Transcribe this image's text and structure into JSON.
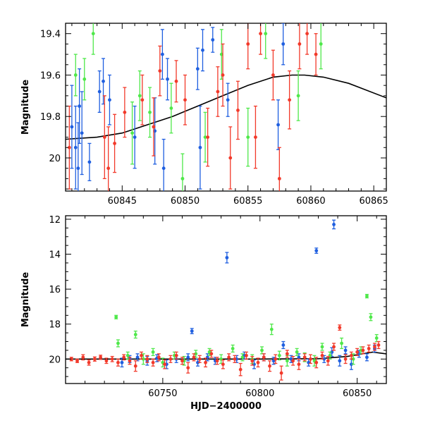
{
  "colors": {
    "blue": "#1f5fe0",
    "green": "#4fe84a",
    "red": "#f2392a",
    "model": "#000000"
  },
  "chart_data": [
    {
      "type": "scatter",
      "panel": "top",
      "xlabel": "",
      "ylabel": "Magnitude",
      "xlim": [
        60840.5,
        60866
      ],
      "ylim": [
        20.16,
        19.35
      ],
      "y_inverted": true,
      "xticks": [
        60845,
        60850,
        60855,
        60860,
        60865
      ],
      "yticks": [
        19.4,
        19.6,
        19.8,
        20
      ],
      "model_curve": {
        "x": [
          60840.5,
          60843,
          60845,
          60847,
          60849,
          60851,
          60853,
          60855,
          60857,
          60858.5,
          60859.5,
          60861,
          60863,
          60866
        ],
        "y": [
          19.91,
          19.9,
          19.88,
          19.84,
          19.8,
          19.75,
          19.7,
          19.65,
          19.61,
          19.6,
          19.6,
          19.61,
          19.64,
          19.71
        ]
      },
      "series": [
        {
          "color_key": "blue",
          "x": [
            60841.0,
            60841.3,
            60841.5,
            60841.6,
            60841.8,
            60842.4,
            60843.2,
            60843.5,
            60844.0,
            60846.0,
            60847.6,
            60848.2,
            60848.3,
            60848.6,
            60851.0,
            60851.2,
            60851.4,
            60852.2,
            60853.4,
            60857.4,
            60857.8
          ],
          "y": [
            19.85,
            19.95,
            20.05,
            19.75,
            19.88,
            20.02,
            19.68,
            19.63,
            19.72,
            19.9,
            19.87,
            19.5,
            20.05,
            19.62,
            19.57,
            19.95,
            19.48,
            19.43,
            19.72,
            19.84,
            19.45
          ],
          "err": [
            0.2,
            0.2,
            0.22,
            0.18,
            0.2,
            0.09,
            0.1,
            0.11,
            0.12,
            0.15,
            0.16,
            0.12,
            0.14,
            0.1,
            0.1,
            0.2,
            0.1,
            0.06,
            0.08,
            0.12,
            0.1
          ]
        },
        {
          "color_key": "green",
          "x": [
            60841.3,
            60842.0,
            60842.7,
            60845.8,
            60846.4,
            60847.2,
            60848.9,
            60849.8,
            60851.6,
            60852.9,
            60855.0,
            60856.4,
            60859.0,
            60860.8
          ],
          "y": [
            19.6,
            19.62,
            19.4,
            19.88,
            19.7,
            19.78,
            19.76,
            20.1,
            19.9,
            19.5,
            19.9,
            19.4,
            19.7,
            19.45
          ],
          "err": [
            0.1,
            0.1,
            0.1,
            0.15,
            0.12,
            0.12,
            0.12,
            0.12,
            0.12,
            0.12,
            0.14,
            0.12,
            0.12,
            0.12
          ]
        },
        {
          "color_key": "red",
          "x": [
            60840.8,
            60843.6,
            60843.9,
            60844.4,
            60845.2,
            60846.6,
            60847.5,
            60848.0,
            60849.3,
            60850.0,
            60851.8,
            60852.6,
            60853.0,
            60853.6,
            60854.2,
            60855.0,
            60855.6,
            60856.0,
            60857.0,
            60857.5,
            60858.3,
            60859.1,
            60859.7,
            60860.4
          ],
          "y": [
            19.95,
            19.9,
            20.05,
            19.93,
            19.78,
            19.72,
            19.85,
            19.58,
            19.63,
            19.72,
            19.9,
            19.68,
            19.6,
            20.0,
            19.77,
            19.45,
            19.9,
            19.4,
            19.6,
            20.1,
            19.72,
            19.45,
            19.4,
            19.5
          ],
          "err": [
            0.2,
            0.2,
            0.2,
            0.14,
            0.12,
            0.12,
            0.14,
            0.12,
            0.1,
            0.12,
            0.14,
            0.12,
            0.15,
            0.15,
            0.14,
            0.12,
            0.15,
            0.1,
            0.12,
            0.15,
            0.14,
            0.12,
            0.1,
            0.1
          ]
        }
      ]
    },
    {
      "type": "scatter",
      "panel": "bottom",
      "xlabel": "HJD−2400000",
      "ylabel": "Magnitude",
      "xlim": [
        60700,
        60865
      ],
      "ylim": [
        21.4,
        11.8
      ],
      "y_inverted": true,
      "xticks": [
        60750,
        60800,
        60850
      ],
      "yticks": [
        12,
        14,
        16,
        18,
        20
      ],
      "model_curve": {
        "x": [
          60700,
          60760,
          60800,
          60830,
          60845,
          60858,
          60865
        ],
        "y": [
          20.0,
          20.0,
          20.0,
          19.98,
          19.85,
          19.6,
          19.7
        ]
      },
      "series": [
        {
          "color_key": "blue",
          "x": [
            60729,
            60733,
            60737,
            60742,
            60747,
            60752,
            60757,
            60763,
            60765,
            60768,
            60773,
            60777,
            60783,
            60788,
            60792,
            60797,
            60802,
            60807,
            60812,
            60816,
            60820,
            60825,
            60829,
            60833,
            60837,
            60838,
            60841,
            60844,
            60847,
            60851,
            60855,
            60859
          ],
          "y": [
            20.2,
            20.0,
            19.9,
            20.1,
            19.95,
            20.3,
            20.0,
            19.9,
            18.4,
            20.2,
            19.9,
            20.1,
            14.2,
            20.0,
            19.8,
            20.3,
            19.9,
            20.1,
            19.2,
            20.0,
            19.9,
            20.2,
            13.8,
            20.0,
            19.6,
            12.3,
            20.1,
            19.5,
            20.3,
            19.7,
            19.9,
            19.4
          ],
          "err": [
            0.25,
            0.2,
            0.2,
            0.25,
            0.2,
            0.25,
            0.2,
            0.2,
            0.15,
            0.2,
            0.2,
            0.2,
            0.3,
            0.2,
            0.2,
            0.25,
            0.2,
            0.2,
            0.2,
            0.2,
            0.2,
            0.2,
            0.15,
            0.2,
            0.25,
            0.25,
            0.3,
            0.2,
            0.3,
            0.2,
            0.2,
            0.2
          ]
        },
        {
          "color_key": "green",
          "x": [
            60726,
            60727,
            60732,
            60736,
            60740,
            60745,
            60750,
            60756,
            60761,
            60767,
            60774,
            60780,
            60786,
            60791,
            60796,
            60801,
            60806,
            60810,
            60814,
            60819,
            60823,
            60828,
            60832,
            60836,
            60842,
            60848,
            60852,
            60855,
            60857,
            60860
          ],
          "y": [
            17.6,
            19.1,
            19.8,
            18.6,
            20.0,
            19.6,
            20.2,
            19.8,
            20.1,
            19.7,
            19.6,
            20.0,
            19.4,
            19.9,
            20.0,
            19.5,
            18.3,
            19.8,
            20.1,
            19.6,
            19.9,
            20.1,
            19.3,
            19.8,
            19.1,
            20.0,
            19.5,
            16.4,
            17.6,
            18.8
          ],
          "err": [
            0.1,
            0.2,
            0.2,
            0.2,
            0.3,
            0.2,
            0.25,
            0.2,
            0.25,
            0.2,
            0.2,
            0.25,
            0.2,
            0.2,
            0.25,
            0.2,
            0.3,
            0.25,
            0.3,
            0.2,
            0.25,
            0.3,
            0.2,
            0.2,
            0.3,
            0.3,
            0.2,
            0.1,
            0.2,
            0.2
          ]
        },
        {
          "color_key": "red",
          "x": [
            60703,
            60706,
            60709,
            60712,
            60715,
            60718,
            60721,
            60724,
            60727,
            60730,
            60733,
            60736,
            60739,
            60742,
            60745,
            60748,
            60751,
            60754,
            60757,
            60760,
            60763,
            60766,
            60769,
            60772,
            60775,
            60778,
            60781,
            60784,
            60787,
            60790,
            60793,
            60796,
            60799,
            60802,
            60805,
            60808,
            60811,
            60814,
            60817,
            60820,
            60823,
            60826,
            60829,
            60832,
            60835,
            60838,
            60841,
            60844,
            60847,
            60850,
            60853,
            60856,
            60859,
            60861
          ],
          "y": [
            20.0,
            20.1,
            19.9,
            20.2,
            20.0,
            19.9,
            20.1,
            20.0,
            20.2,
            19.9,
            20.1,
            20.4,
            19.8,
            20.0,
            20.2,
            19.9,
            20.3,
            20.0,
            19.8,
            20.1,
            20.5,
            19.9,
            20.0,
            20.2,
            19.7,
            20.1,
            20.3,
            19.9,
            20.0,
            20.6,
            19.8,
            20.1,
            20.2,
            19.9,
            20.4,
            20.0,
            20.8,
            19.7,
            20.1,
            20.3,
            19.9,
            20.0,
            20.2,
            19.8,
            20.1,
            19.3,
            18.2,
            20.0,
            19.8,
            19.6,
            19.5,
            19.4,
            19.3,
            19.2
          ],
          "err": [
            0.1,
            0.1,
            0.15,
            0.15,
            0.12,
            0.12,
            0.15,
            0.15,
            0.2,
            0.15,
            0.2,
            0.3,
            0.2,
            0.2,
            0.2,
            0.2,
            0.25,
            0.2,
            0.2,
            0.2,
            0.3,
            0.2,
            0.2,
            0.25,
            0.2,
            0.2,
            0.25,
            0.2,
            0.2,
            0.35,
            0.2,
            0.25,
            0.25,
            0.2,
            0.3,
            0.25,
            0.4,
            0.2,
            0.25,
            0.3,
            0.2,
            0.25,
            0.3,
            0.2,
            0.25,
            0.2,
            0.15,
            0.25,
            0.2,
            0.2,
            0.2,
            0.2,
            0.2,
            0.2
          ]
        }
      ]
    }
  ]
}
